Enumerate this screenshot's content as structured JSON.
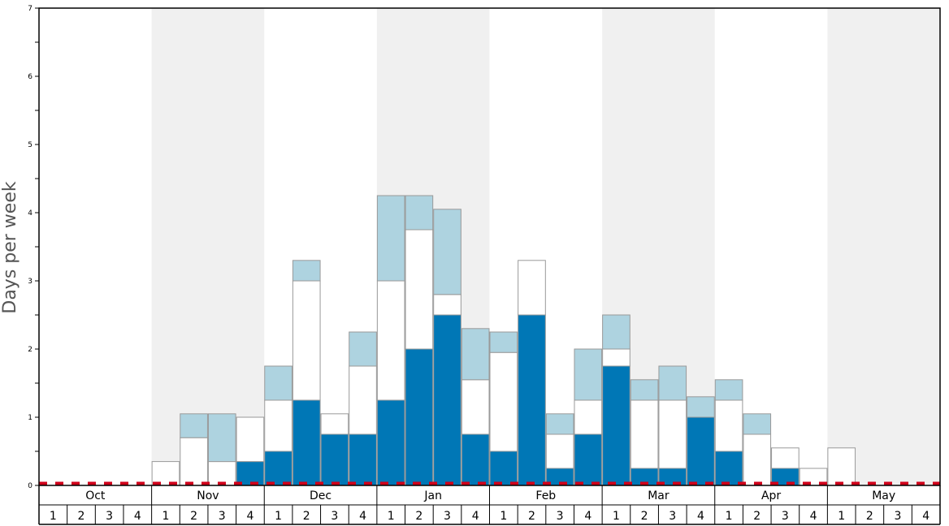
{
  "chart_data": {
    "type": "bar",
    "stacked": true,
    "ylabel": "Days per week",
    "ylim": [
      0,
      7
    ],
    "yticks": [
      0,
      1,
      2,
      3,
      4,
      5,
      6,
      7
    ],
    "months": [
      "Oct",
      "Nov",
      "Dec",
      "Jan",
      "Feb",
      "Mar",
      "Apr",
      "May"
    ],
    "weeks_per_month": [
      "1",
      "2",
      "3",
      "4"
    ],
    "shaded_months": [
      "Nov",
      "Jan",
      "Mar",
      "May"
    ],
    "reference_line": {
      "value": 0.03,
      "style": "dashed",
      "color": "#d0021b"
    },
    "colors": {
      "dark": "#0077b6",
      "white": "#ffffff",
      "light": "#aed3e0",
      "shade": "#f0f0f0",
      "outline": "#999999"
    },
    "series": [
      {
        "key": "dark",
        "values": [
          0,
          0,
          0,
          0,
          0,
          0,
          0,
          0.35,
          0.5,
          1.25,
          0.75,
          0.75,
          1.25,
          2.0,
          2.5,
          0.75,
          0.5,
          2.5,
          0.25,
          0.75,
          1.75,
          0.25,
          0.25,
          1.0,
          0.5,
          0,
          0.25,
          0,
          0,
          0,
          0,
          0
        ]
      },
      {
        "key": "white",
        "values": [
          0,
          0,
          0,
          0,
          0.35,
          0.7,
          0.35,
          0.65,
          0.75,
          1.75,
          0.3,
          1.0,
          1.75,
          1.75,
          0.3,
          0.8,
          1.45,
          0.8,
          0.5,
          0.5,
          0.25,
          1.0,
          1.0,
          0,
          0.75,
          0.75,
          0.3,
          0.25,
          0.55,
          0,
          0,
          0
        ]
      },
      {
        "key": "light",
        "values": [
          0,
          0,
          0,
          0,
          0,
          0.35,
          0.7,
          0,
          0.5,
          0.3,
          0,
          0.5,
          1.25,
          0.5,
          1.25,
          0.75,
          0.3,
          0,
          0.3,
          0.75,
          0.5,
          0.3,
          0.5,
          0.3,
          0.3,
          0.3,
          0,
          0,
          0,
          0,
          0,
          0
        ]
      }
    ]
  }
}
